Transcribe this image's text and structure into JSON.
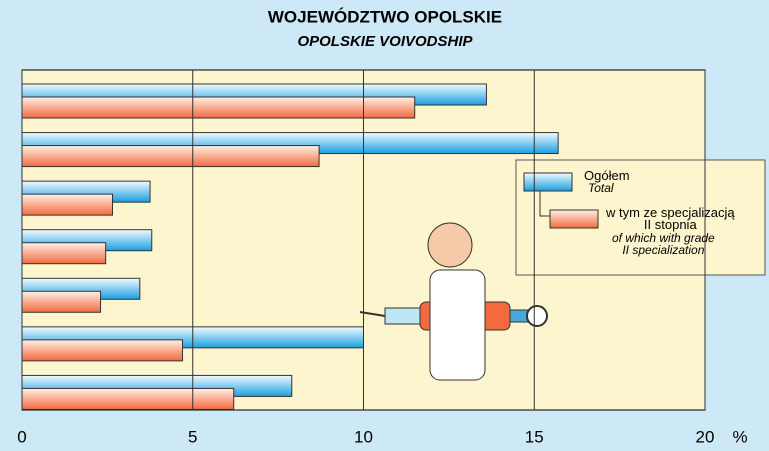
{
  "chart_data": {
    "type": "hbar",
    "title": "WOJEWÓDZTWO OPOLSKIE",
    "subtitle": "OPOLSKIE VOIVODSHIP",
    "x_unit": "%",
    "categories": [
      null,
      null,
      null,
      null,
      null,
      null,
      null
    ],
    "series": [
      {
        "name": "Ogółem",
        "name_en": "Total",
        "color": "#1a9ee0",
        "values": [
          13.6,
          15.7,
          3.75,
          3.8,
          3.45,
          10.0,
          7.9
        ]
      },
      {
        "name": "w tym ze specjalizacją\nII stopnia",
        "name_en": "of which with grade\nII specialization",
        "color": "#f26a3e",
        "values": [
          11.5,
          8.7,
          2.65,
          2.45,
          2.3,
          4.7,
          6.2
        ]
      }
    ],
    "xlim": [
      0,
      20
    ],
    "xticks": [
      0,
      5,
      10,
      15,
      20
    ],
    "grid": true
  }
}
